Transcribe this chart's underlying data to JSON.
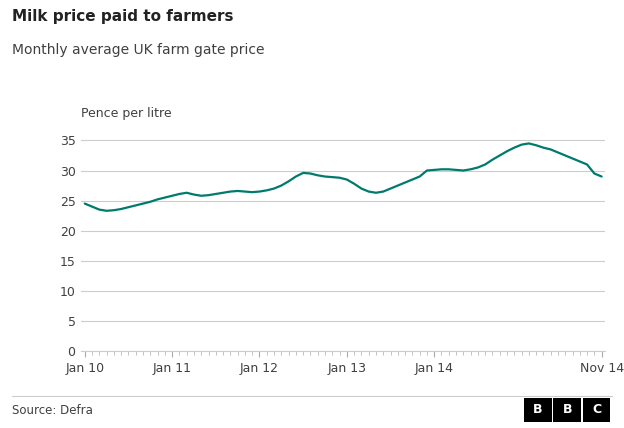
{
  "title": "Milk price paid to farmers",
  "subtitle": "Monthly average UK farm gate price",
  "ylabel": "Pence per litre",
  "source": "Source: Defra",
  "line_color": "#007a6e",
  "line_width": 1.6,
  "background_color": "#ffffff",
  "grid_color": "#cccccc",
  "text_color": "#404040",
  "ylim": [
    0,
    37
  ],
  "yticks": [
    0,
    5,
    10,
    15,
    20,
    25,
    30,
    35
  ],
  "x_tick_labels": [
    "Jan 10",
    "Jan 11",
    "Jan 12",
    "Jan 13",
    "Jan 14",
    "Nov 14"
  ],
  "values": [
    24.5,
    24.0,
    23.5,
    23.3,
    23.4,
    23.6,
    23.9,
    24.2,
    24.5,
    24.8,
    25.2,
    25.5,
    25.8,
    26.1,
    26.3,
    26.0,
    25.8,
    25.9,
    26.1,
    26.3,
    26.5,
    26.6,
    26.5,
    26.4,
    26.5,
    26.7,
    27.0,
    27.5,
    28.2,
    29.0,
    29.6,
    29.5,
    29.2,
    29.0,
    28.9,
    28.8,
    28.5,
    27.8,
    27.0,
    26.5,
    26.3,
    26.5,
    27.0,
    27.5,
    28.0,
    28.5,
    29.0,
    30.0,
    30.1,
    30.2,
    30.2,
    30.1,
    30.0,
    30.2,
    30.5,
    31.0,
    31.8,
    32.5,
    33.2,
    33.8,
    34.3,
    34.5,
    34.2,
    33.8,
    33.5,
    33.0,
    32.5,
    32.0,
    31.5,
    31.0,
    29.5,
    29.0
  ]
}
